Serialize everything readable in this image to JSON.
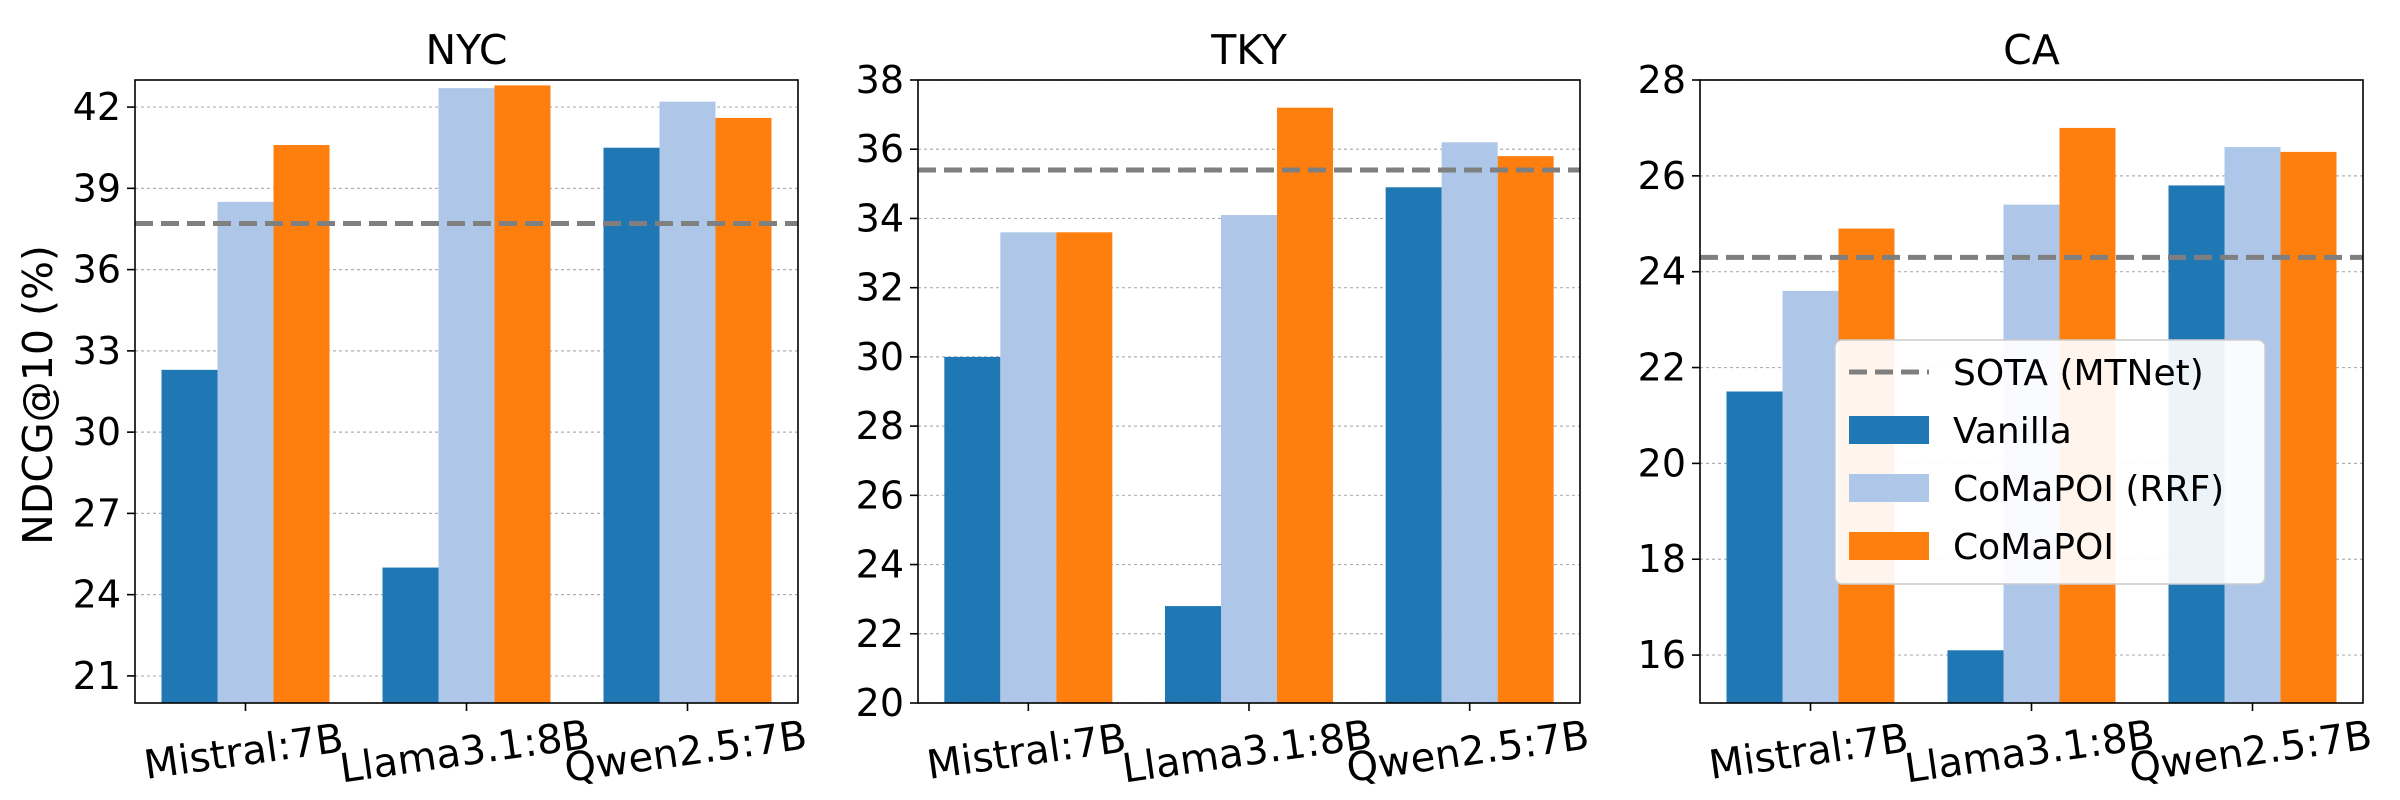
{
  "figure": {
    "ylabel": "NDCG@10 (%)"
  },
  "legend": {
    "placement": "right side of CA panel",
    "entries": [
      {
        "label": "SOTA (MTNet)",
        "kind": "dashed-line",
        "color": "#7f7f7f"
      },
      {
        "label": "Vanilla",
        "kind": "bar",
        "color": "#1f77b4"
      },
      {
        "label": "CoMaPOI (RRF)",
        "kind": "bar",
        "color": "#aec7e8"
      },
      {
        "label": "CoMaPOI",
        "kind": "bar",
        "color": "#ff7f0e"
      }
    ]
  },
  "colors": {
    "vanilla": "#1f77b4",
    "rrf": "#aec7e8",
    "comapoi": "#ff7f0e",
    "sota": "#7f7f7f"
  },
  "chart_data": [
    {
      "type": "bar",
      "title": "NYC",
      "categories": [
        "Mistral:7B",
        "Llama3.1:8B",
        "Qwen2.5:7B"
      ],
      "series": [
        {
          "name": "Vanilla",
          "values": [
            32.3,
            25.0,
            40.5
          ]
        },
        {
          "name": "CoMaPOI (RRF)",
          "values": [
            38.5,
            42.7,
            42.2
          ]
        },
        {
          "name": "CoMaPOI",
          "values": [
            40.6,
            42.8,
            41.6
          ]
        }
      ],
      "sota": 37.7,
      "ylim": [
        20,
        43
      ],
      "yticks": [
        21,
        24,
        27,
        30,
        33,
        36,
        39,
        42
      ],
      "grid": "horizontal"
    },
    {
      "type": "bar",
      "title": "TKY",
      "categories": [
        "Mistral:7B",
        "Llama3.1:8B",
        "Qwen2.5:7B"
      ],
      "series": [
        {
          "name": "Vanilla",
          "values": [
            30.0,
            22.8,
            34.9
          ]
        },
        {
          "name": "CoMaPOI (RRF)",
          "values": [
            33.6,
            34.1,
            36.2
          ]
        },
        {
          "name": "CoMaPOI",
          "values": [
            33.6,
            37.2,
            35.8
          ]
        }
      ],
      "sota": 35.4,
      "ylim": [
        20,
        38
      ],
      "yticks": [
        20,
        22,
        24,
        26,
        28,
        30,
        32,
        34,
        36,
        38
      ],
      "grid": "horizontal"
    },
    {
      "type": "bar",
      "title": "CA",
      "categories": [
        "Mistral:7B",
        "Llama3.1:8B",
        "Qwen2.5:7B"
      ],
      "series": [
        {
          "name": "Vanilla",
          "values": [
            21.5,
            16.1,
            25.8
          ]
        },
        {
          "name": "CoMaPOI (RRF)",
          "values": [
            23.6,
            25.4,
            26.6
          ]
        },
        {
          "name": "CoMaPOI",
          "values": [
            24.9,
            27.0,
            26.5
          ]
        }
      ],
      "sota": 24.3,
      "ylim": [
        15,
        28
      ],
      "yticks": [
        16,
        18,
        20,
        22,
        24,
        26,
        28
      ],
      "grid": "horizontal"
    }
  ]
}
